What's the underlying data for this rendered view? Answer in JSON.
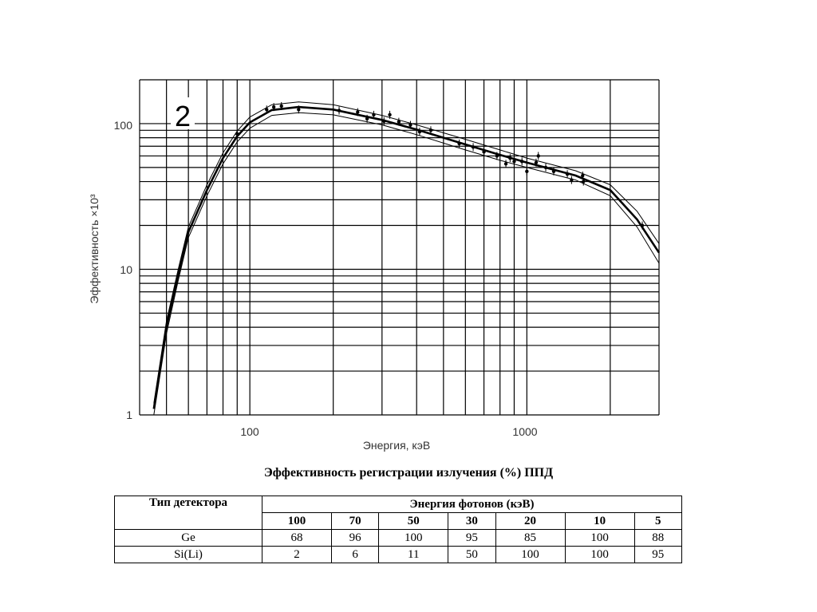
{
  "chart_data": {
    "type": "line",
    "panel_label": "2",
    "xlabel": "Энергия, кэВ",
    "ylabel": "Эффективность ×10³",
    "xscale": "log",
    "yscale": "log",
    "xlim": [
      40,
      3000
    ],
    "ylim": [
      1,
      200
    ],
    "x_tick_labels": [
      "100",
      "1000"
    ],
    "y_tick_labels": [
      "1",
      "10",
      "100"
    ],
    "grid": true,
    "series": [
      {
        "name": "fit",
        "x": [
          45,
          50,
          55,
          60,
          70,
          80,
          90,
          100,
          120,
          150,
          200,
          300,
          400,
          600,
          800,
          1000,
          1500,
          2000,
          2500,
          3000
        ],
        "y": [
          1.1,
          4,
          9,
          18,
          35,
          58,
          82,
          102,
          124,
          130,
          125,
          106,
          91,
          72,
          61,
          54,
          44,
          35,
          22,
          13
        ]
      },
      {
        "name": "upper",
        "x": [
          45,
          50,
          55,
          60,
          70,
          80,
          90,
          100,
          120,
          150,
          200,
          300,
          400,
          600,
          800,
          1000,
          1500,
          2000,
          2500,
          3000
        ],
        "y": [
          1.2,
          4.4,
          9.8,
          19.5,
          38,
          63,
          89,
          111,
          135,
          141,
          135,
          114,
          98,
          78,
          66,
          58,
          47.5,
          38,
          25,
          15
        ]
      },
      {
        "name": "lower",
        "x": [
          45,
          50,
          55,
          60,
          70,
          80,
          90,
          100,
          120,
          150,
          200,
          300,
          400,
          600,
          800,
          1000,
          1500,
          2000,
          2500,
          3000
        ],
        "y": [
          1.0,
          3.6,
          8.2,
          16.5,
          32,
          53,
          75,
          93,
          114,
          119,
          115,
          98,
          84,
          66,
          56,
          50,
          41,
          32,
          19.5,
          11
        ]
      },
      {
        "name": "measured",
        "x": [
          90,
          115,
          122,
          130,
          150,
          210,
          245,
          265,
          280,
          305,
          320,
          345,
          380,
          410,
          450,
          570,
          640,
          700,
          780,
          840,
          870,
          900,
          960,
          1000,
          1080,
          1100,
          1170,
          1250,
          1400,
          1450,
          1590,
          1600,
          2610
        ],
        "y": [
          85,
          125,
          130,
          132,
          125,
          123,
          120,
          108,
          115,
          104,
          115,
          103,
          98,
          88,
          90,
          73,
          69,
          64,
          60,
          53,
          58,
          55,
          55,
          47,
          54,
          60,
          50,
          47,
          45,
          41,
          44,
          40,
          20
        ]
      }
    ]
  },
  "caption": "Эффективность регистрации излучения (%) ППД",
  "table": {
    "header_type": "Тип детектора",
    "header_energy": "Энергия фотонов (кэВ)",
    "energies": [
      "100",
      "70",
      "50",
      "30",
      "20",
      "10",
      "5"
    ],
    "rows": [
      {
        "type": "Ge",
        "values": [
          "68",
          "96",
          "100",
          "95",
          "85",
          "100",
          "88"
        ]
      },
      {
        "type": "Si(Li)",
        "values": [
          "2",
          "6",
          "11",
          "50",
          "100",
          "100",
          "95"
        ]
      }
    ]
  }
}
